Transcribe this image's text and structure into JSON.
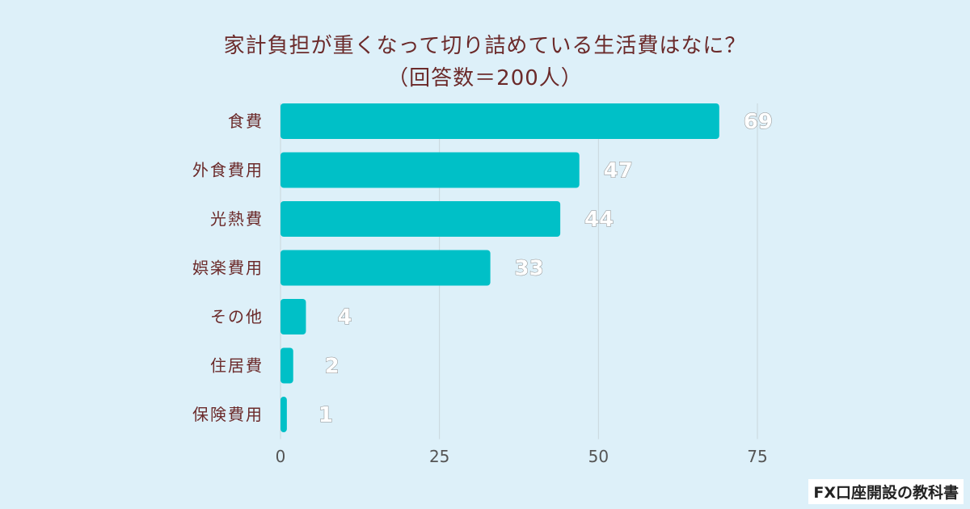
{
  "title_line1": "家計負担が重くなって切り詰めている生活費はなに？",
  "title_line2": "（回答数＝200人）",
  "watermark": "FX口座開設の教科書",
  "colors": {
    "bar": "#00c0c7",
    "label": "#6b2a2a",
    "value": "#ffffff",
    "grid": "#c9d6dc"
  },
  "chart_data": {
    "type": "bar",
    "orientation": "horizontal",
    "title": "家計負担が重くなって切り詰めている生活費はなに？（回答数＝200人）",
    "categories": [
      "食費",
      "外食費用",
      "光熱費",
      "娯楽費用",
      "その他",
      "住居費",
      "保険費用"
    ],
    "values": [
      69,
      47,
      44,
      33,
      4,
      2,
      1
    ],
    "xlim": [
      0,
      75
    ],
    "xticks": [
      "0",
      "25",
      "50",
      "75"
    ],
    "grid": true,
    "legend": "none"
  }
}
